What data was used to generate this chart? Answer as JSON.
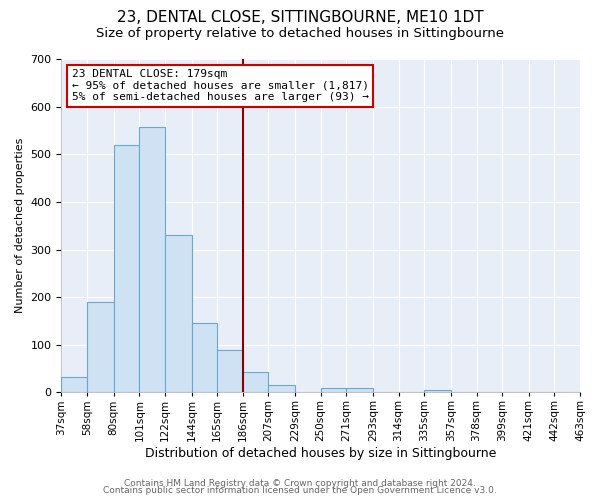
{
  "title": "23, DENTAL CLOSE, SITTINGBOURNE, ME10 1DT",
  "subtitle": "Size of property relative to detached houses in Sittingbourne",
  "xlabel": "Distribution of detached houses by size in Sittingbourne",
  "ylabel": "Number of detached properties",
  "bar_edges": [
    37,
    58,
    80,
    101,
    122,
    144,
    165,
    186,
    207,
    229,
    250,
    271,
    293,
    314,
    335,
    357,
    378,
    399,
    421,
    442,
    463
  ],
  "bar_heights": [
    33,
    190,
    519,
    557,
    330,
    145,
    88,
    42,
    15,
    0,
    10,
    10,
    0,
    0,
    5,
    0,
    0,
    0,
    0,
    0
  ],
  "tick_labels": [
    "37sqm",
    "58sqm",
    "80sqm",
    "101sqm",
    "122sqm",
    "144sqm",
    "165sqm",
    "186sqm",
    "207sqm",
    "229sqm",
    "250sqm",
    "271sqm",
    "293sqm",
    "314sqm",
    "335sqm",
    "357sqm",
    "378sqm",
    "399sqm",
    "421sqm",
    "442sqm",
    "463sqm"
  ],
  "bar_color": "#cfe2f3",
  "bar_edgecolor": "#6aa8d0",
  "axes_bg_color": "#e8eef8",
  "vline_x": 186,
  "vline_color": "#8b0000",
  "annotation_title": "23 DENTAL CLOSE: 179sqm",
  "annotation_line1": "← 95% of detached houses are smaller (1,817)",
  "annotation_line2": "5% of semi-detached houses are larger (93) →",
  "annotation_box_edgecolor": "#cc0000",
  "ylim": [
    0,
    700
  ],
  "yticks": [
    0,
    100,
    200,
    300,
    400,
    500,
    600,
    700
  ],
  "grid_color": "#ffffff",
  "footer1": "Contains HM Land Registry data © Crown copyright and database right 2024.",
  "footer2": "Contains public sector information licensed under the Open Government Licence v3.0.",
  "title_fontsize": 11,
  "subtitle_fontsize": 9.5,
  "xlabel_fontsize": 9,
  "ylabel_fontsize": 8,
  "tick_fontsize": 7.5,
  "annotation_fontsize": 8,
  "footer_fontsize": 6.5
}
